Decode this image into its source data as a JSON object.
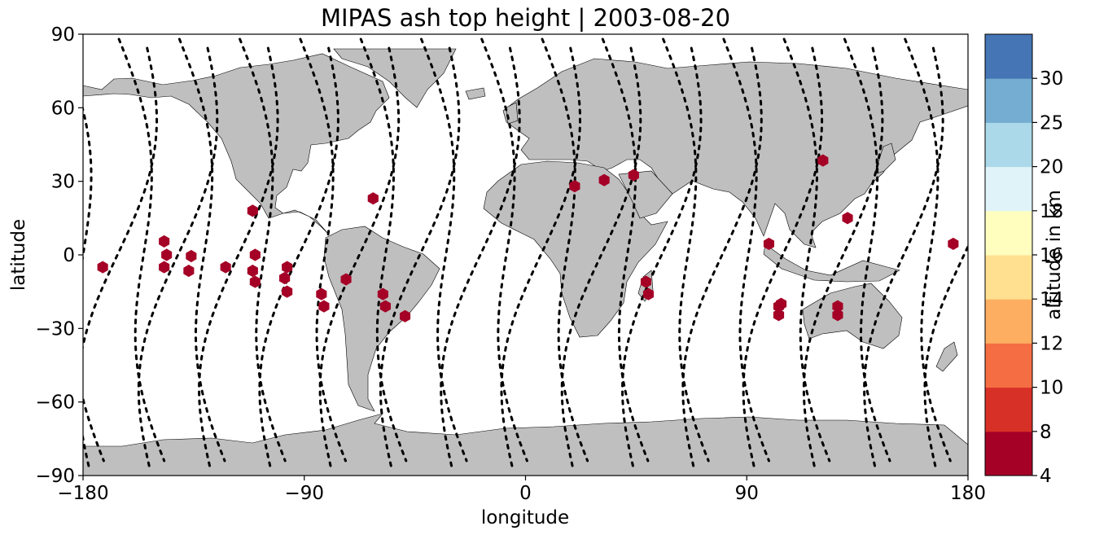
{
  "title": "MIPAS ash top height | 2003-08-20",
  "chart_data": {
    "type": "scatter",
    "title": "MIPAS ash top height | 2003-08-20",
    "xlabel": "longitude",
    "ylabel": "latitude",
    "xlim": [
      -180,
      180
    ],
    "ylim": [
      -90,
      90
    ],
    "xticks": [
      -180,
      -90,
      0,
      90,
      180
    ],
    "yticks": [
      90,
      60,
      30,
      0,
      -30,
      -60,
      -90
    ],
    "xtick_labels": [
      "−180",
      "−90",
      "0",
      "90",
      "180"
    ],
    "ytick_labels": [
      "90",
      "60",
      "30",
      "0",
      "−30",
      "−60",
      "−90"
    ],
    "basemap": "world coastlines, land grey",
    "colors": {
      "land": "#bfbfbf",
      "track": "#000000",
      "ash_marker": "#a50026"
    },
    "ash_points": [
      {
        "lon": -172,
        "lat": -5
      },
      {
        "lon": -147,
        "lat": 5.5
      },
      {
        "lon": -146,
        "lat": 0
      },
      {
        "lon": -147,
        "lat": -5
      },
      {
        "lon": -136,
        "lat": -0.5
      },
      {
        "lon": -137,
        "lat": -6.5
      },
      {
        "lon": -122,
        "lat": -5
      },
      {
        "lon": -111,
        "lat": 18
      },
      {
        "lon": -110,
        "lat": 0
      },
      {
        "lon": -111,
        "lat": -6.5
      },
      {
        "lon": -110,
        "lat": -11
      },
      {
        "lon": -97,
        "lat": -5
      },
      {
        "lon": -98,
        "lat": -9.5
      },
      {
        "lon": -97,
        "lat": -15
      },
      {
        "lon": -83,
        "lat": -16
      },
      {
        "lon": -82,
        "lat": -21
      },
      {
        "lon": -73,
        "lat": -10
      },
      {
        "lon": -62,
        "lat": 23
      },
      {
        "lon": -58,
        "lat": -16
      },
      {
        "lon": -57,
        "lat": -21
      },
      {
        "lon": -49,
        "lat": -25
      },
      {
        "lon": 20,
        "lat": 28
      },
      {
        "lon": 32,
        "lat": 30.5
      },
      {
        "lon": 44,
        "lat": 32.5
      },
      {
        "lon": 49,
        "lat": -11
      },
      {
        "lon": 50,
        "lat": -16
      },
      {
        "lon": 99,
        "lat": 4.5
      },
      {
        "lon": 104,
        "lat": -20
      },
      {
        "lon": 103,
        "lat": -21
      },
      {
        "lon": 103,
        "lat": -24.5
      },
      {
        "lon": 121,
        "lat": 38.5
      },
      {
        "lon": 131,
        "lat": 15
      },
      {
        "lon": 127,
        "lat": -21
      },
      {
        "lon": 127,
        "lat": -24.5
      },
      {
        "lon": 174,
        "lat": 4.5
      }
    ],
    "colorbar": {
      "label": "altitude in km",
      "bounds": [
        4,
        8,
        10,
        12,
        14,
        16,
        18,
        20,
        25,
        30
      ],
      "tick_labels": [
        "4",
        "8",
        "10",
        "12",
        "14",
        "16",
        "18",
        "20",
        "25",
        "30"
      ],
      "colors": [
        "#a50026",
        "#d73027",
        "#f46d43",
        "#fdae61",
        "#fee090",
        "#fffebf",
        "#e0f3f8",
        "#abd9e9",
        "#74add1",
        "#4575b4"
      ]
    }
  }
}
